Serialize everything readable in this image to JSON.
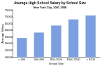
{
  "chart_data": {
    "type": "bar",
    "title": "Average High School Salary by School Size",
    "subtitle": "New York City, 2007-2008",
    "x_label": "School Size",
    "y_label": "Average Salary",
    "categories": [
      "< 400",
      "400-800",
      "800-1600",
      "1600-3200",
      "> 3200"
    ],
    "values": [
      54400,
      58500,
      63700,
      68300,
      71400
    ],
    "color": "#7b9fe0",
    "ylim": [
      40000,
      75000
    ],
    "yticks": [
      40000,
      45000,
      50000,
      55000,
      60000,
      65000,
      70000,
      75000
    ],
    "grid": false
  }
}
